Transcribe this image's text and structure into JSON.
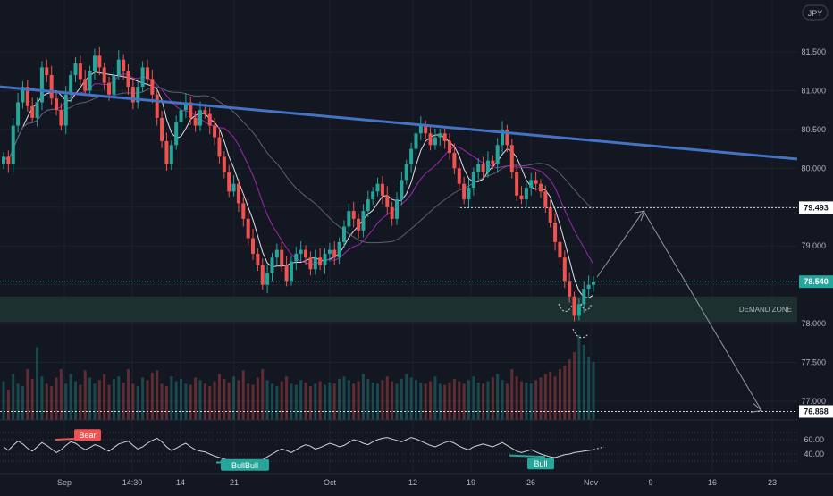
{
  "header": {
    "currency_badge": "JPY"
  },
  "colors": {
    "background": "#131722",
    "up": "#26a69a",
    "down": "#ef5350",
    "trendline": "#4472c4",
    "ma_fast": "#e0e3eb",
    "ma_mid": "#9c27b0",
    "ma_slow": "#5d6070",
    "demand_zone": "#1f3a34",
    "axis_text": "#b2b5be",
    "oscillator": "#d1d4dc"
  },
  "annotations": {
    "demand_zone_label": "DEMAND ZONE",
    "bear_label": "Bear",
    "bull_label_left": "BullBull",
    "bull_label_right": "Bull"
  },
  "chart_data": [
    {
      "type": "candlestick",
      "title": "",
      "price_axis": {
        "ticks": [
          "81.500",
          "81.000",
          "80.500",
          "80.000",
          "79.500",
          "79.000",
          "78.500",
          "78.000",
          "77.500",
          "77.000"
        ],
        "range": [
          76.75,
          81.85
        ]
      },
      "time_axis": {
        "ticks": [
          "Sep",
          "14:30",
          "14",
          "21",
          "Oct",
          "12",
          "19",
          "26",
          "Nov",
          "9",
          "16",
          "23"
        ]
      },
      "price_labels": [
        {
          "label": "79.493",
          "value": 79.493,
          "style": "dotted-level"
        },
        {
          "label": "78.540",
          "value": 78.54,
          "style": "current-price"
        },
        {
          "label": "76.868",
          "value": 76.868,
          "style": "target-level"
        }
      ],
      "series": [
        {
          "name": "",
          "close": [
            80.15,
            80.05,
            80.55,
            80.85,
            81.05,
            80.8,
            80.65,
            80.85,
            81.3,
            81.2,
            80.9,
            80.75,
            80.55,
            80.95,
            81.2,
            81.35,
            81.15,
            81.0,
            81.25,
            81.45,
            81.3,
            81.1,
            80.95,
            81.2,
            81.4,
            81.25,
            81.05,
            80.85,
            81.05,
            81.3,
            81.15,
            80.95,
            80.65,
            80.35,
            80.05,
            80.3,
            80.6,
            80.75,
            80.85,
            80.65,
            80.55,
            80.75,
            80.7,
            80.55,
            80.4,
            80.15,
            79.95,
            79.7,
            79.8,
            79.55,
            79.35,
            79.1,
            78.9,
            78.75,
            78.5,
            78.65,
            78.85,
            78.95,
            78.75,
            78.55,
            78.8,
            78.9,
            78.95,
            78.85,
            78.7,
            78.85,
            78.75,
            78.9,
            78.95,
            78.85,
            79.05,
            79.25,
            79.45,
            79.35,
            79.2,
            79.45,
            79.6,
            79.7,
            79.8,
            79.65,
            79.5,
            79.35,
            79.6,
            79.85,
            80.05,
            80.25,
            80.45,
            80.55,
            80.45,
            80.3,
            80.4,
            80.45,
            80.35,
            80.2,
            80.0,
            79.8,
            79.6,
            79.75,
            79.95,
            80.05,
            79.95,
            80.1,
            80.05,
            80.3,
            80.5,
            80.3,
            79.95,
            79.65,
            79.6,
            79.75,
            79.85,
            79.8,
            79.7,
            79.5,
            79.3,
            79.05,
            78.85,
            78.55,
            78.35,
            78.1,
            78.25,
            78.45,
            78.5,
            78.54
          ],
          "volume": [
            320,
            250,
            380,
            300,
            280,
            420,
            340,
            600,
            360,
            300,
            280,
            350,
            420,
            300,
            380,
            320,
            290,
            410,
            350,
            300,
            330,
            380,
            290,
            340,
            360,
            310,
            420,
            300,
            280,
            350,
            330,
            390,
            410,
            300,
            280,
            360,
            320,
            340,
            300,
            290,
            350,
            330,
            300,
            280,
            320,
            380,
            340,
            310,
            360,
            330,
            410,
            300,
            290,
            350,
            420,
            330,
            300,
            280,
            320,
            360,
            300,
            290,
            330,
            310,
            280,
            300,
            320,
            290,
            310,
            300,
            340,
            360,
            330,
            300,
            320,
            380,
            340,
            310,
            300,
            330,
            360,
            320,
            300,
            340,
            380,
            350,
            330,
            310,
            300,
            320,
            360,
            300,
            290,
            310,
            340,
            320,
            300,
            330,
            360,
            310,
            300,
            320,
            350,
            380,
            330,
            300,
            420,
            360,
            320,
            310,
            300,
            330,
            350,
            380,
            400,
            360,
            420,
            450,
            500,
            560,
            700,
            620,
            520,
            480
          ]
        }
      ],
      "moving_averages": [
        "ma_fast",
        "ma_mid",
        "ma_slow"
      ],
      "trendline": {
        "from": [
          "Aug 29",
          81.05
        ],
        "to": [
          "Nov 29",
          80.12
        ]
      },
      "demand_zone": {
        "from": 78.02,
        "to": 78.35
      },
      "projection": [
        {
          "time": "Nov 1",
          "price": 78.6
        },
        {
          "time": "Nov 5",
          "price": 79.45
        },
        {
          "time": "Nov 23",
          "price": 76.88
        }
      ]
    },
    {
      "type": "line",
      "title": "",
      "y_ticks": [
        "60.00",
        "40.00"
      ],
      "levels": [
        70,
        60,
        40,
        30
      ],
      "series": [
        {
          "name": "",
          "values": [
            50,
            45,
            52,
            58,
            54,
            48,
            44,
            50,
            56,
            52,
            47,
            42,
            46,
            52,
            57,
            55,
            50,
            46,
            49,
            53,
            51,
            47,
            44,
            49,
            54,
            56,
            58,
            52,
            47,
            50,
            55,
            59,
            62,
            57,
            50,
            45,
            48,
            52,
            55,
            50,
            46,
            44,
            43,
            40,
            37,
            35,
            33,
            31,
            30,
            28,
            27,
            26,
            27,
            29,
            32,
            36,
            40,
            44,
            47,
            45,
            42,
            46,
            50,
            53,
            51,
            47,
            49,
            52,
            55,
            53,
            50,
            52,
            56,
            60,
            58,
            55,
            53,
            57,
            60,
            62,
            63,
            61,
            59,
            57,
            60,
            63,
            61,
            58,
            55,
            52,
            50,
            53,
            56,
            58,
            55,
            51,
            48,
            46,
            50,
            52,
            54,
            52,
            50,
            53,
            56,
            52,
            48,
            44,
            42,
            44,
            46,
            43,
            40,
            38,
            36,
            35,
            37,
            39,
            40,
            42,
            43,
            44,
            45,
            46
          ]
        }
      ]
    }
  ]
}
